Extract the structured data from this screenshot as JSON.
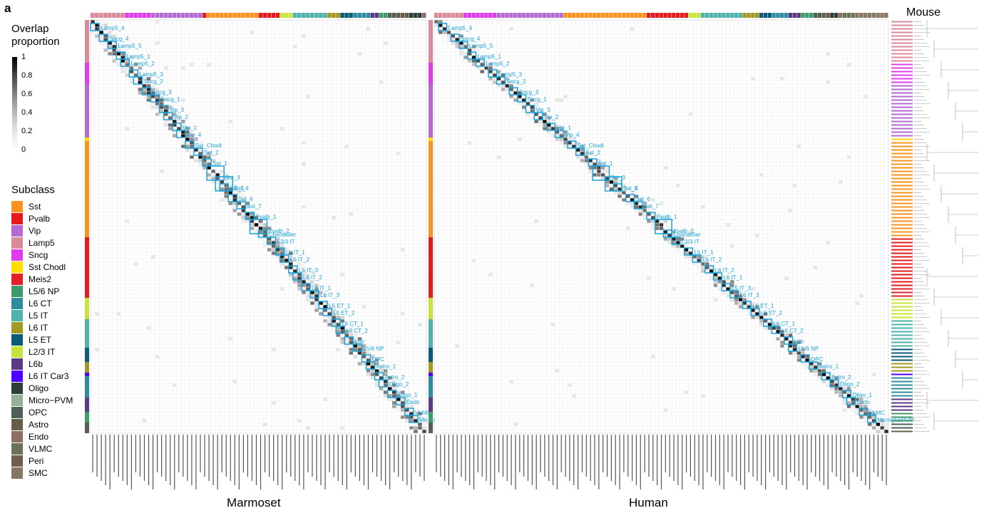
{
  "panel_label": "a",
  "scale": {
    "title": "Overlap proportion",
    "ticks": [
      "1",
      "0.8",
      "0.6",
      "0.4",
      "0.2",
      "0"
    ]
  },
  "legend": {
    "title": "Subclass",
    "items": [
      {
        "label": "Sst",
        "color": "#f7931e"
      },
      {
        "label": "Pvalb",
        "color": "#e41a1c"
      },
      {
        "label": "Vip",
        "color": "#b36ad2"
      },
      {
        "label": "Lamp5",
        "color": "#d98b9a"
      },
      {
        "label": "Sncg",
        "color": "#df3cf0"
      },
      {
        "label": "Sst Chodl",
        "color": "#ffdd00"
      },
      {
        "label": "Meis2",
        "color": "#e21f26"
      },
      {
        "label": "L5/6 NP",
        "color": "#3e9b6b"
      },
      {
        "label": "L6 CT",
        "color": "#2d8c9e"
      },
      {
        "label": "L5 IT",
        "color": "#50b2ad"
      },
      {
        "label": "L6 IT",
        "color": "#a19922"
      },
      {
        "label": "L5 ET",
        "color": "#0d5b78"
      },
      {
        "label": "L2/3 IT",
        "color": "#c6e43a"
      },
      {
        "label": "L6b",
        "color": "#5a3a84"
      },
      {
        "label": "L6 IT Car3",
        "color": "#5100ff"
      },
      {
        "label": "Oligo",
        "color": "#2e3e39"
      },
      {
        "label": "Micro−PVM",
        "color": "#94af97"
      },
      {
        "label": "OPC",
        "color": "#4e5f56"
      },
      {
        "label": "Astro",
        "color": "#665c47"
      },
      {
        "label": "Endo",
        "color": "#8e6f63"
      },
      {
        "label": "VLMC",
        "color": "#697255"
      },
      {
        "label": "Peri",
        "color": "#715d4f"
      },
      {
        "label": "SMC",
        "color": "#857760"
      }
    ]
  },
  "axes": {
    "x_left": "Marmoset",
    "x_right": "Human",
    "right_title": "Mouse",
    "subclass_row": "Subclass"
  },
  "chart_data": [
    {
      "type": "heatmap",
      "title": "",
      "xlabel": "Marmoset",
      "ylabel": "Mouse",
      "value_range": [
        0,
        1
      ],
      "annotations": [
        "Lamp5_4",
        "Sncg_4",
        "Lamp5_5",
        "Lamp5_1",
        "Lamp5_2",
        "Lamp5_3",
        "Sncg_2",
        "Sncg_3",
        "Sncg_1",
        "Vip_3",
        "Vip_2",
        "Vip_1",
        "Vip_4",
        "Sst_Chodl",
        "Sst_2",
        "Sst_1",
        "Sst_3",
        "Sst_4",
        "Sst_5",
        "Sst_6",
        "Sst_7",
        "Pvalb_1",
        "Pvalb_2",
        "Chandelier",
        "L2/3 IT",
        "L5 IT_1",
        "L5 IT_2",
        "L5 IT_3",
        "L6 IT_2",
        "L6 IT_1",
        "L6 IT_3",
        "L5 ET_1",
        "L5 ET_2",
        "L6 CT_1",
        "L6 CT_2",
        "L6b",
        "L5/6 NP",
        "OPC",
        "Astro_1",
        "Astro_2",
        "Oligo_2",
        "Oligo_1",
        "Endo",
        "VLMC",
        "Microglia/PVM"
      ]
    },
    {
      "type": "heatmap",
      "title": "",
      "xlabel": "Human",
      "ylabel": "Mouse",
      "value_range": [
        0,
        1
      ],
      "annotations": [
        "Lamp5_4",
        "Sncg_4",
        "Lamp5_5",
        "Lamp5_1",
        "Lamp5_2",
        "Lamp5_3",
        "Sncg_2",
        "Sncg_3",
        "Sncg_1",
        "Vip_3",
        "Vip_2",
        "Vip_1",
        "Vip_4",
        "Sst_Chodl",
        "Sst_2",
        "Sst_1",
        "Sst_3",
        "Sst_4",
        "Sst_5",
        "Sst_6",
        "Sst_7",
        "Pvalb_1",
        "Pvalb_2",
        "Chandelier",
        "L2/3 IT",
        "L5 IT_1",
        "L5 IT_2",
        "L6 IT_2",
        "L6 IT_1",
        "L5 IT_3",
        "L6 IT_3",
        "L5 ET_1",
        "L5 ET_2",
        "L6 CT_1",
        "L6 CT_2",
        "L6b",
        "L5/6 NP",
        "OPC",
        "Astro_1",
        "Astro_2",
        "Oligo_2",
        "Oligo_1",
        "Endo",
        "VLMC",
        "Microglia/PVM"
      ]
    }
  ]
}
